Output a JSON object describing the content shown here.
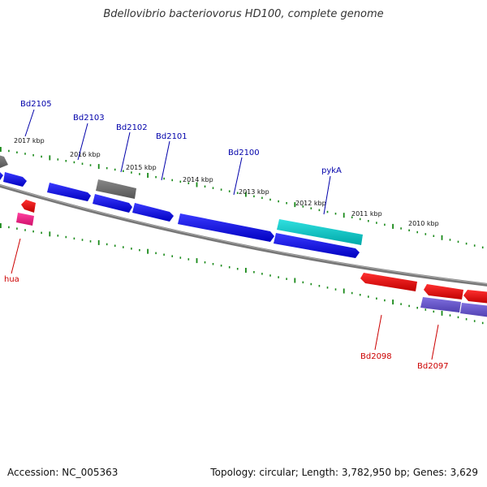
{
  "title": "Bdellovibrio bacteriovorus HD100, complete genome",
  "footer": {
    "accession": "Accession: NC_005363",
    "summary": "Topology: circular; Length: 3,782,950 bp; Genes: 3,629"
  },
  "colors": {
    "backbone": "#7a7a7a",
    "tick": "#1a8a1a",
    "cds_forward": "#1010ee",
    "cds_reverse": "#ee1010",
    "highlight": "#10c8c8",
    "pseudo": "#6a6a6a",
    "rna": "#ee2090",
    "other": "#6a5acd",
    "label_forward": "#0000aa",
    "label_reverse": "#cc0000"
  },
  "ticks": [
    "2017 kbp",
    "2016 kbp",
    "2015 kbp",
    "2014 kbp",
    "2013 kbp",
    "2012 kbp",
    "2011 kbp",
    "2010 kbp"
  ],
  "genes": [
    {
      "name": "Bd2105",
      "strand": "forward"
    },
    {
      "name": "Bd2103",
      "strand": "forward"
    },
    {
      "name": "Bd2102",
      "strand": "forward"
    },
    {
      "name": "Bd2101",
      "strand": "forward"
    },
    {
      "name": "Bd2100",
      "strand": "forward"
    },
    {
      "name": "pykA",
      "strand": "forward"
    },
    {
      "name": "hua",
      "strand": "reverse"
    },
    {
      "name": "Bd2098",
      "strand": "reverse"
    },
    {
      "name": "Bd2097",
      "strand": "reverse"
    }
  ]
}
